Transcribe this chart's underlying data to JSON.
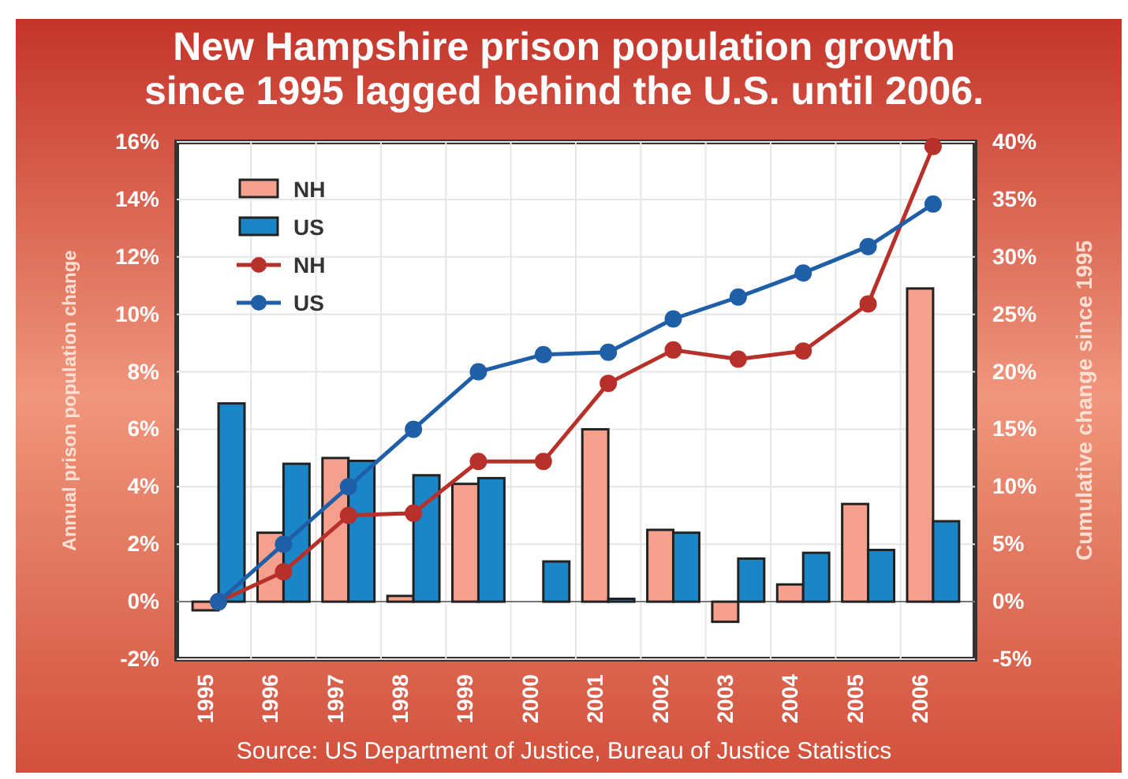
{
  "chart_data": {
    "type": "bar",
    "title": "New Hampshire prison population growth\nsince 1995 lagged behind the U.S. until 2006.",
    "ylabel": "Annual prison population change",
    "y2label": "Cumulative change since 1995",
    "annotations": [
      "Source: US Department of Justice, Bureau of Justice Statistics"
    ],
    "categories": [
      "1995",
      "1996",
      "1997",
      "1998",
      "1999",
      "2000",
      "2001",
      "2002",
      "2003",
      "2004",
      "2005",
      "2006"
    ],
    "series": [
      {
        "name": "NH",
        "color": "#f4a08c",
        "values": [
          -0.3,
          2.4,
          5.0,
          0.2,
          4.1,
          null,
          6.0,
          2.5,
          -0.7,
          0.6,
          3.4,
          10.9
        ]
      },
      {
        "name": "US",
        "color": "#1a86c8",
        "values": [
          6.9,
          4.8,
          4.9,
          4.4,
          4.3,
          1.4,
          0.1,
          2.4,
          1.5,
          1.7,
          1.8,
          2.8
        ]
      },
      {
        "name": "NH",
        "type": "line",
        "axis": "y2",
        "color": "#b8302a",
        "values": [
          0,
          2.6,
          7.5,
          7.7,
          12.2,
          12.2,
          19,
          21.9,
          21.1,
          21.8,
          25.9,
          39.6
        ]
      },
      {
        "name": "US",
        "type": "line",
        "axis": "y2",
        "color": "#1f5fa8",
        "values": [
          0,
          5,
          10,
          15,
          20,
          21.5,
          21.7,
          24.6,
          26.5,
          28.6,
          30.9,
          34.6
        ]
      }
    ],
    "ylim": [
      -2,
      16
    ],
    "yticks": [
      {
        "value": -2,
        "label": "-2%"
      },
      {
        "value": 0,
        "label": "0%"
      },
      {
        "value": 2,
        "label": "2%"
      },
      {
        "value": 4,
        "label": "4%"
      },
      {
        "value": 6,
        "label": "6%"
      },
      {
        "value": 8,
        "label": "8%"
      },
      {
        "value": 10,
        "label": "10%"
      },
      {
        "value": 12,
        "label": "12%"
      },
      {
        "value": 14,
        "label": "14%"
      },
      {
        "value": 16,
        "label": "16%"
      }
    ],
    "y2lim": [
      -5,
      40
    ],
    "y2ticks": [
      {
        "value": -5,
        "label": "-5%"
      },
      {
        "value": 0,
        "label": "0%"
      },
      {
        "value": 5,
        "label": "5%"
      },
      {
        "value": 10,
        "label": "10%"
      },
      {
        "value": 15,
        "label": "15%"
      },
      {
        "value": 20,
        "label": "20%"
      },
      {
        "value": 25,
        "label": "25%"
      },
      {
        "value": 30,
        "label": "30%"
      },
      {
        "value": 35,
        "label": "35%"
      },
      {
        "value": 40,
        "label": "40%"
      }
    ],
    "grid": true,
    "legend": "top left",
    "marker": "circle"
  }
}
